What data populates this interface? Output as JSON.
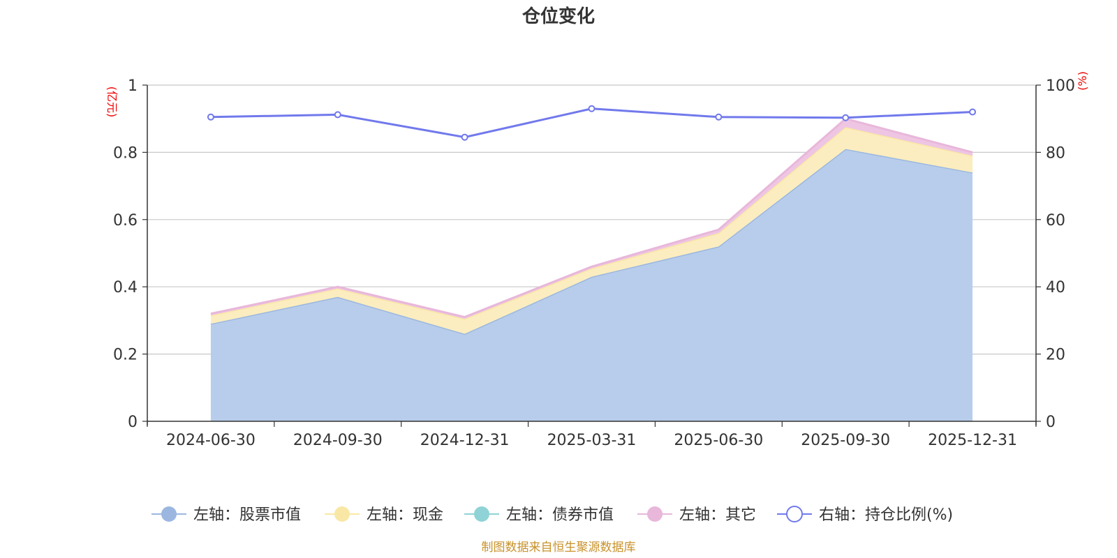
{
  "chart_data": {
    "type": "area",
    "title": "仓位变化",
    "categories": [
      "2024-06-30",
      "2024-09-30",
      "2024-12-31",
      "2025-03-31",
      "2025-06-30",
      "2025-09-30",
      "2025-12-31"
    ],
    "left_axis": {
      "unit": "(亿元)",
      "ticks": [
        "0",
        "0.2",
        "0.4",
        "0.6",
        "0.8",
        "1"
      ],
      "range": [
        0,
        1
      ]
    },
    "right_axis": {
      "unit": "(%)",
      "ticks": [
        "0",
        "20",
        "40",
        "60",
        "80",
        "100"
      ],
      "range": [
        0,
        100
      ]
    },
    "series": [
      {
        "name": "左轴：股票市值",
        "axis": "left",
        "stack": true,
        "color": "#9bb7e0",
        "fill": "#b8cdeb",
        "values": [
          0.29,
          0.37,
          0.26,
          0.43,
          0.52,
          0.81,
          0.74
        ]
      },
      {
        "name": "左轴：现金",
        "axis": "left",
        "stack": true,
        "color": "#f9e7a6",
        "fill": "#fbedbf",
        "values": [
          0.025,
          0.025,
          0.045,
          0.025,
          0.04,
          0.065,
          0.05
        ]
      },
      {
        "name": "左轴：债券市值",
        "axis": "left",
        "stack": true,
        "color": "#8fd3d6",
        "fill": "#a8dfe0",
        "values": [
          0,
          0,
          0,
          0,
          0,
          0,
          0
        ]
      },
      {
        "name": "左轴：其它",
        "axis": "left",
        "stack": true,
        "color": "#e8b7da",
        "fill": "#eec6e3",
        "values": [
          0.005,
          0.005,
          0.005,
          0.005,
          0.01,
          0.025,
          0.01
        ]
      },
      {
        "name": "右轴：持仓比例(%)",
        "axis": "right",
        "stack": false,
        "color": "#7179ec",
        "fill": "#ffffff",
        "values": [
          90.5,
          91.2,
          84.5,
          93.0,
          90.5,
          90.3,
          92.0
        ]
      }
    ]
  },
  "source": "制图数据来自恒生聚源数据库"
}
